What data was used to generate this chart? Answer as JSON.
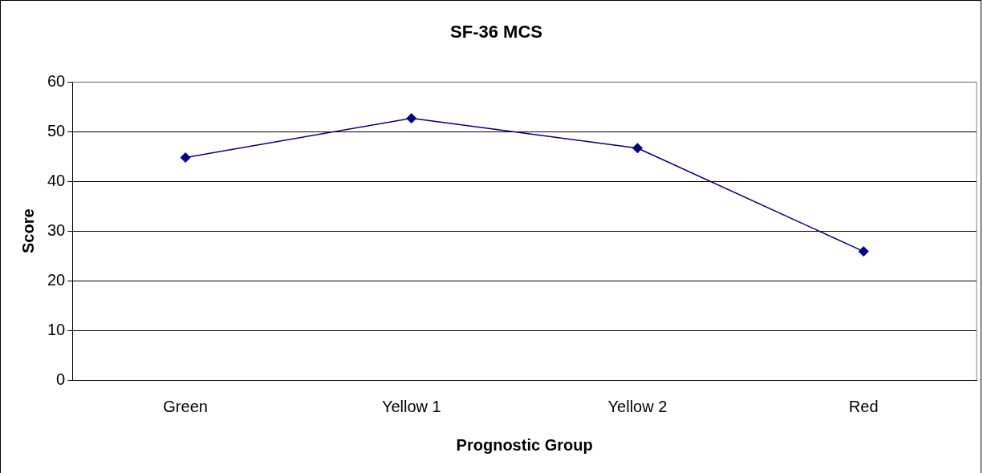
{
  "chart_data": {
    "type": "line",
    "title": "SF-36 MCS",
    "xlabel": "Prognostic Group",
    "ylabel": "Score",
    "categories": [
      "Green",
      "Yellow 1",
      "Yellow 2",
      "Red"
    ],
    "series": [
      {
        "color": "#000080",
        "values": [
          44.8,
          52.7,
          46.7,
          25.9
        ]
      }
    ],
    "ylim": [
      0,
      60
    ],
    "yticks": [
      0,
      10,
      20,
      30,
      40,
      50,
      60
    ],
    "grid": "y",
    "marker": "diamond",
    "line_style": "solid",
    "legend": false
  }
}
